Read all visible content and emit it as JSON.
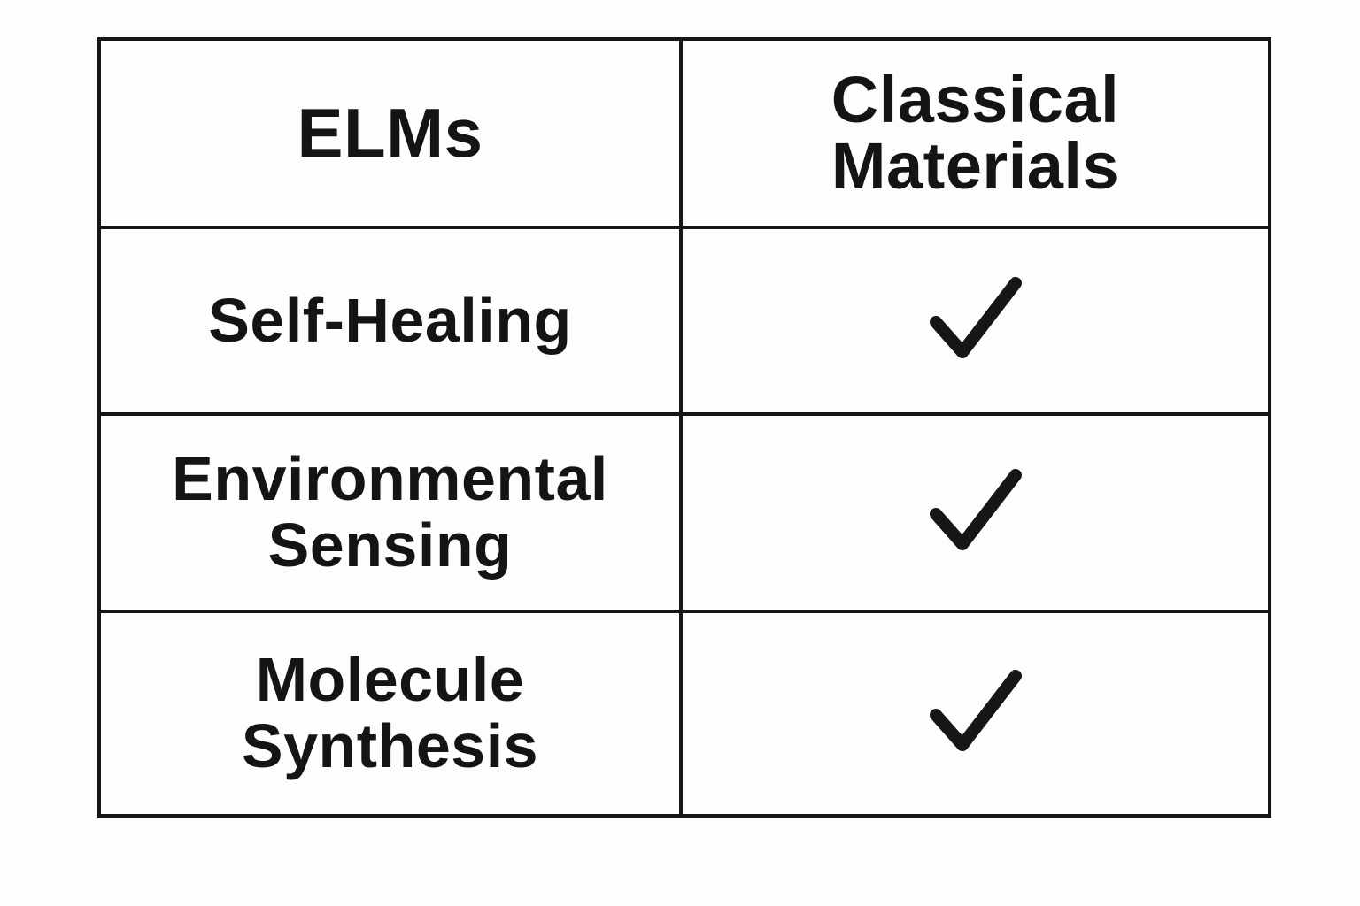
{
  "table": {
    "headers": {
      "left": "ELMs",
      "right": "Classical\nMaterials"
    },
    "rows": [
      {
        "label": "Self-Healing",
        "check_icon": "checkmark-icon"
      },
      {
        "label": "Environmental\nSensing",
        "check_icon": "checkmark-icon"
      },
      {
        "label": "Molecule\nSynthesis",
        "check_icon": "checkmark-icon"
      }
    ]
  },
  "colors": {
    "ink": "#161616",
    "background": "#fdfdfb"
  }
}
